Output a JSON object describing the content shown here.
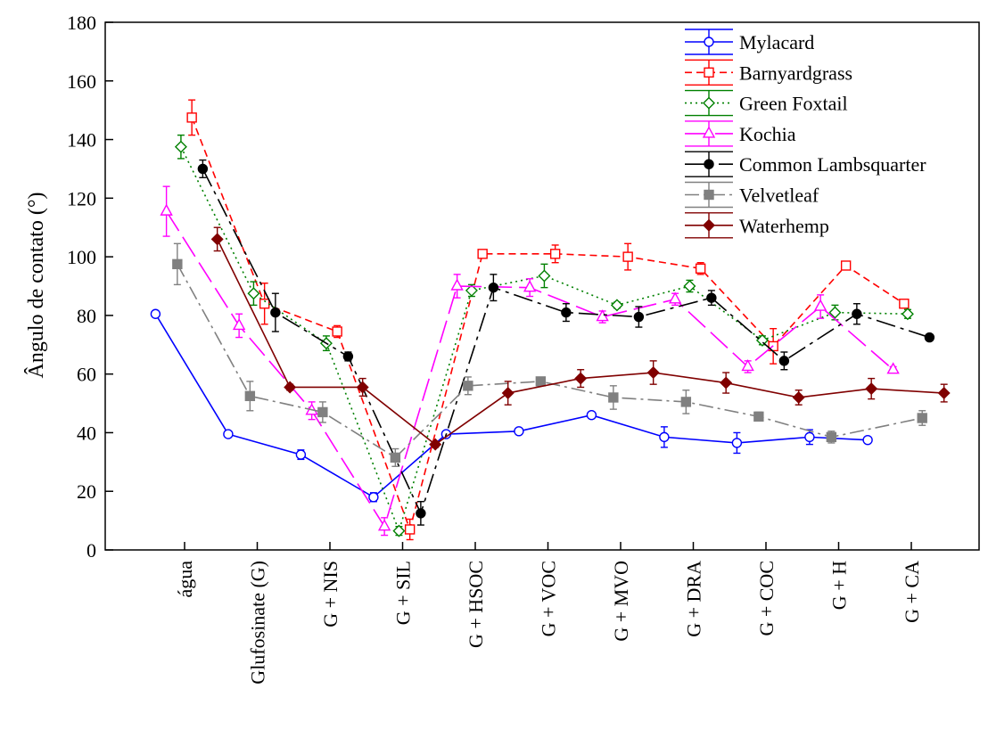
{
  "chart_data": {
    "type": "line",
    "title": "",
    "xlabel": "",
    "ylabel": "Ângulo de contato (°)",
    "ylim": [
      0,
      180
    ],
    "yticks": [
      0,
      20,
      40,
      60,
      80,
      100,
      120,
      140,
      160,
      180
    ],
    "grid": false,
    "legend_position": "top-right",
    "categories": [
      "água",
      "Glufosinate (G)",
      "G + NIS",
      "G + SIL",
      "G + HSOC",
      "G + VOC",
      "G + MVO",
      "G + DRA",
      "G + COC",
      "G + H",
      "G + CA"
    ],
    "series": [
      {
        "name": "Mylacard",
        "color": "#0000ff",
        "dash": "solid",
        "marker": "circle-open",
        "x": [
          -0.4,
          0.6,
          1.6,
          2.6,
          3.6,
          4.6,
          5.6,
          6.6,
          7.6,
          8.6,
          9.4
        ],
        "values": [
          80.5,
          39.5,
          32.5,
          18,
          39.5,
          40.5,
          46,
          38.5,
          36.5,
          38.5,
          37.5
        ],
        "errors": [
          0.8,
          0.8,
          1.6,
          1.5,
          0.8,
          0.8,
          0.8,
          3.5,
          3.5,
          2.5,
          0.8
        ]
      },
      {
        "name": "Barnyardgrass",
        "color": "#ff0000",
        "dash": "8,5",
        "marker": "square-open",
        "x": [
          0.1,
          1.1,
          2.1,
          3.1,
          4.1,
          5.1,
          6.1,
          7.1,
          8.1,
          9.1,
          9.9
        ],
        "values": [
          147.5,
          84,
          74.5,
          7,
          101,
          101,
          100,
          96,
          69.5,
          97,
          84
        ],
        "errors": [
          6,
          7,
          2,
          3.5,
          1,
          3,
          4.5,
          2,
          6,
          1,
          1
        ]
      },
      {
        "name": "Green Foxtail",
        "color": "#008000",
        "dash": "2,4",
        "marker": "diamond-open",
        "x": [
          -0.05,
          0.95,
          1.95,
          2.95,
          3.95,
          4.95,
          5.95,
          6.95,
          7.95,
          8.95,
          9.95
        ],
        "values": [
          137.5,
          87.5,
          70.5,
          6.5,
          88.5,
          93.5,
          83.5,
          90,
          71.5,
          81,
          80.5
        ],
        "errors": [
          4,
          4,
          2.5,
          1.5,
          2,
          4,
          1,
          2,
          1.5,
          2.5,
          1.5
        ]
      },
      {
        "name": "Kochia",
        "color": "#ff00ff",
        "dash": "26,8",
        "marker": "triangle-open",
        "x": [
          -0.25,
          0.75,
          1.75,
          2.75,
          3.75,
          4.75,
          5.75,
          6.75,
          7.75,
          8.75,
          9.75
        ],
        "values": [
          115.5,
          76.5,
          47.5,
          8,
          90,
          89.5,
          79.5,
          85.5,
          62.5,
          83,
          61.5
        ],
        "errors": [
          8.5,
          4,
          3,
          3,
          4,
          3,
          2,
          2,
          2,
          4,
          1
        ]
      },
      {
        "name": "Common Lambsquarter",
        "color": "#000000",
        "dash": "22,6,4,6",
        "marker": "circle-filled",
        "x": [
          0.25,
          1.25,
          2.25,
          3.25,
          4.25,
          5.25,
          6.25,
          7.25,
          8.25,
          9.25,
          10.25
        ],
        "values": [
          130,
          81,
          66,
          12.5,
          89.5,
          81,
          79.5,
          86,
          64.5,
          80.5,
          72.5
        ],
        "errors": [
          3,
          6.5,
          1.5,
          4,
          4.5,
          3,
          3.5,
          2.5,
          3,
          3.5,
          1
        ]
      },
      {
        "name": "Velvetleaf",
        "color": "#808080",
        "dash": "16,5,3,5",
        "marker": "square-filled",
        "x": [
          -0.1,
          0.9,
          1.9,
          2.9,
          3.9,
          4.9,
          5.9,
          6.9,
          7.9,
          8.9,
          10.15
        ],
        "values": [
          97.5,
          52.5,
          47,
          31.5,
          56,
          57.5,
          52,
          50.5,
          45.5,
          38.5,
          45
        ],
        "errors": [
          7,
          5,
          3.5,
          3,
          3,
          1,
          4,
          4,
          1.5,
          2,
          2.5
        ]
      },
      {
        "name": "Waterhemp",
        "color": "#800000",
        "dash": "solid",
        "marker": "diamond-filled",
        "x": [
          0.45,
          1.45,
          2.45,
          3.45,
          4.45,
          5.45,
          6.45,
          7.45,
          8.45,
          9.45,
          10.45
        ],
        "values": [
          106,
          55.5,
          55.5,
          36,
          53.5,
          58.5,
          60.5,
          57,
          52,
          55,
          53.5
        ],
        "errors": [
          4,
          1,
          3,
          1,
          4,
          3,
          4,
          3.5,
          2.5,
          3.5,
          3
        ]
      }
    ]
  }
}
